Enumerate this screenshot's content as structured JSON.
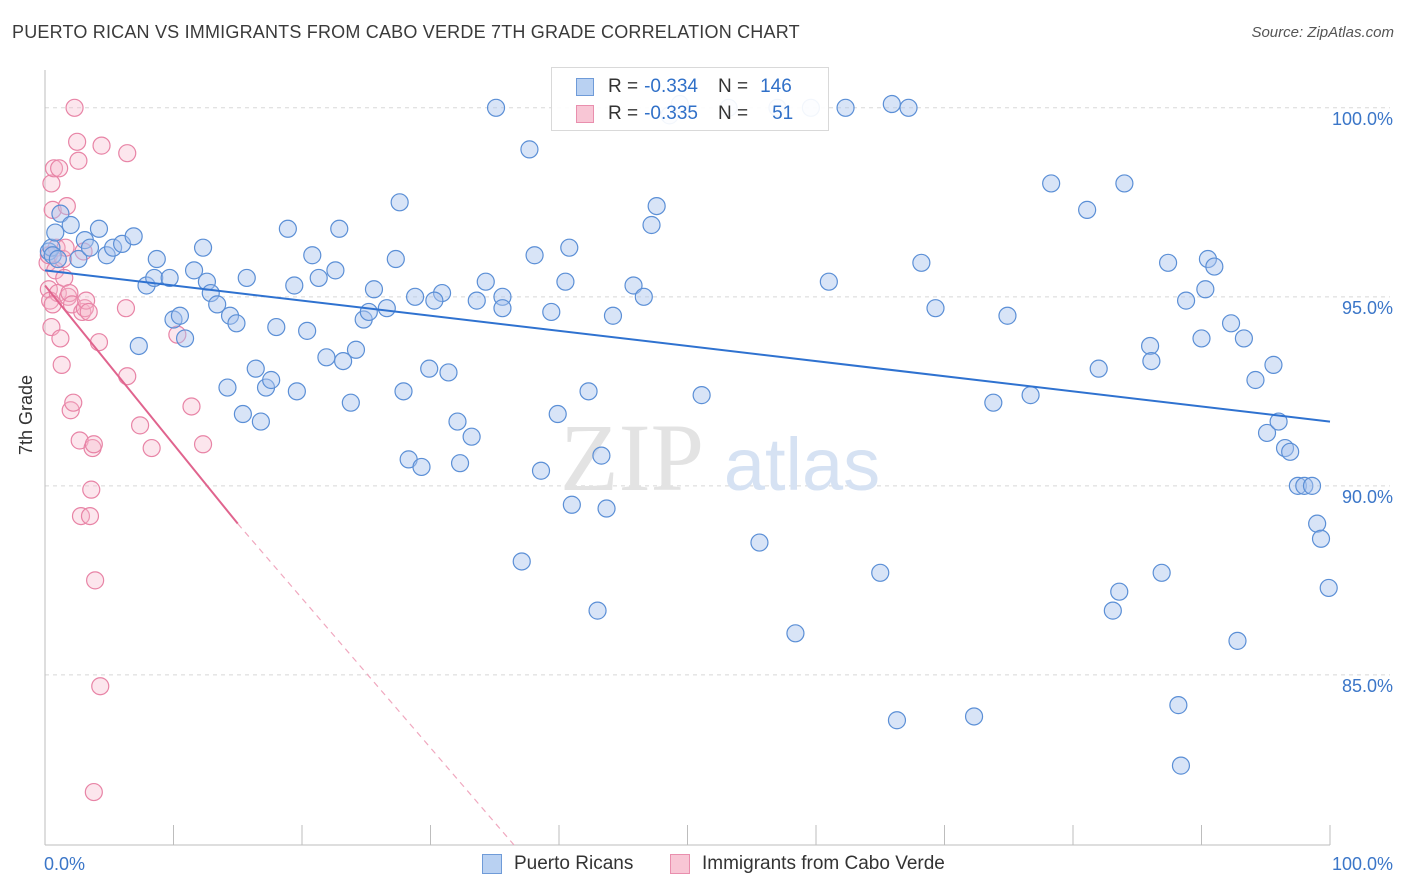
{
  "header": {
    "title": "PUERTO RICAN VS IMMIGRANTS FROM CABO VERDE 7TH GRADE CORRELATION CHART",
    "source": "Source: ZipAtlas.com"
  },
  "legend": {
    "row1": {
      "r_label": "R =",
      "r_value": "-0.334",
      "n_label": "N =",
      "n_value": "146"
    },
    "row2": {
      "r_label": "R =",
      "r_value": "-0.335",
      "n_label": "N =",
      "n_value": "51"
    }
  },
  "bottom_legend": {
    "series1": "Puerto Ricans",
    "series2": "Immigrants from Cabo Verde"
  },
  "colors": {
    "blue_fill": "#a9c4ee",
    "blue_stroke": "#5b8fd6",
    "blue_line": "#2f72d0",
    "pink_fill": "#f5b8cb",
    "pink_stroke": "#e884a6",
    "pink_line": "#e0648e",
    "tick_text": "#3b76c8",
    "grid": "#d8d8d8",
    "watermark": "#e3e3e3"
  },
  "chart_data": {
    "type": "scatter",
    "title": "PUERTO RICAN VS IMMIGRANTS FROM CABO VERDE 7TH GRADE CORRELATION CHART",
    "xlabel": "",
    "ylabel": "7th Grade",
    "xlim": [
      0,
      100
    ],
    "ylim": [
      80.5,
      101.0
    ],
    "x_tick_labels": [
      "0.0%",
      "100.0%"
    ],
    "y_ticks": [
      85,
      90,
      95,
      100
    ],
    "y_tick_labels": [
      "85.0%",
      "90.0%",
      "95.0%",
      "100.0%"
    ],
    "grid": true,
    "watermark": {
      "zip": "ZIP",
      "atlas": "atlas"
    },
    "series": [
      {
        "name": "Puerto Ricans",
        "color": "#a9c4ee",
        "trendline": {
          "x": [
            0,
            100
          ],
          "y": [
            95.7,
            91.7
          ]
        },
        "points": [
          [
            0.3,
            96.2
          ],
          [
            0.5,
            96.3
          ],
          [
            0.6,
            96.1
          ],
          [
            0.8,
            96.7
          ],
          [
            1.0,
            96.0
          ],
          [
            1.2,
            97.2
          ],
          [
            2.0,
            96.9
          ],
          [
            2.6,
            96.0
          ],
          [
            3.1,
            96.5
          ],
          [
            3.5,
            96.3
          ],
          [
            4.2,
            96.8
          ],
          [
            4.8,
            96.1
          ],
          [
            5.3,
            96.3
          ],
          [
            6.0,
            96.4
          ],
          [
            6.9,
            96.6
          ],
          [
            7.3,
            93.7
          ],
          [
            7.9,
            95.3
          ],
          [
            8.5,
            95.5
          ],
          [
            8.7,
            96.0
          ],
          [
            9.7,
            95.5
          ],
          [
            10.0,
            94.4
          ],
          [
            10.5,
            94.5
          ],
          [
            10.9,
            93.9
          ],
          [
            11.6,
            95.7
          ],
          [
            12.3,
            96.3
          ],
          [
            12.6,
            95.4
          ],
          [
            12.9,
            95.1
          ],
          [
            13.4,
            94.8
          ],
          [
            14.2,
            92.6
          ],
          [
            14.4,
            94.5
          ],
          [
            14.9,
            94.3
          ],
          [
            15.4,
            91.9
          ],
          [
            15.7,
            95.5
          ],
          [
            16.4,
            93.1
          ],
          [
            16.8,
            91.7
          ],
          [
            17.2,
            92.6
          ],
          [
            17.6,
            92.8
          ],
          [
            18.0,
            94.2
          ],
          [
            18.9,
            96.8
          ],
          [
            19.4,
            95.3
          ],
          [
            19.6,
            92.5
          ],
          [
            20.4,
            94.1
          ],
          [
            20.8,
            96.1
          ],
          [
            21.3,
            95.5
          ],
          [
            21.9,
            93.4
          ],
          [
            22.6,
            95.7
          ],
          [
            22.9,
            96.8
          ],
          [
            23.2,
            93.3
          ],
          [
            23.8,
            92.2
          ],
          [
            24.2,
            93.6
          ],
          [
            24.8,
            94.4
          ],
          [
            25.2,
            94.6
          ],
          [
            25.6,
            95.2
          ],
          [
            26.6,
            94.7
          ],
          [
            27.3,
            96.0
          ],
          [
            27.6,
            97.5
          ],
          [
            27.9,
            92.5
          ],
          [
            28.3,
            90.7
          ],
          [
            28.8,
            95.0
          ],
          [
            29.3,
            90.5
          ],
          [
            29.9,
            93.1
          ],
          [
            30.9,
            95.1
          ],
          [
            30.3,
            94.9
          ],
          [
            31.4,
            93.0
          ],
          [
            32.1,
            91.7
          ],
          [
            32.3,
            90.6
          ],
          [
            33.2,
            91.3
          ],
          [
            33.6,
            94.9
          ],
          [
            34.3,
            95.4
          ],
          [
            35.1,
            100.0
          ],
          [
            35.6,
            95.0
          ],
          [
            35.6,
            94.7
          ],
          [
            37.1,
            88.0
          ],
          [
            37.7,
            98.9
          ],
          [
            38.1,
            96.1
          ],
          [
            38.6,
            90.4
          ],
          [
            39.4,
            94.6
          ],
          [
            39.9,
            91.9
          ],
          [
            40.5,
            95.4
          ],
          [
            40.8,
            96.3
          ],
          [
            41.0,
            89.5
          ],
          [
            42.3,
            92.5
          ],
          [
            43.0,
            86.7
          ],
          [
            43.3,
            90.8
          ],
          [
            43.7,
            89.4
          ],
          [
            44.2,
            94.5
          ],
          [
            45.8,
            95.3
          ],
          [
            46.6,
            95.0
          ],
          [
            47.2,
            96.9
          ],
          [
            47.6,
            97.4
          ],
          [
            48.6,
            99.8
          ],
          [
            49.4,
            100.1
          ],
          [
            51.1,
            92.4
          ],
          [
            53.2,
            100.0
          ],
          [
            55.6,
            88.5
          ],
          [
            57.0,
            100.0
          ],
          [
            58.4,
            86.1
          ],
          [
            59.6,
            100.0
          ],
          [
            61.0,
            95.4
          ],
          [
            62.3,
            100.0
          ],
          [
            65.0,
            87.7
          ],
          [
            65.9,
            100.1
          ],
          [
            66.3,
            83.8
          ],
          [
            67.2,
            100.0
          ],
          [
            68.2,
            95.9
          ],
          [
            69.3,
            94.7
          ],
          [
            72.3,
            83.9
          ],
          [
            73.8,
            92.2
          ],
          [
            74.9,
            94.5
          ],
          [
            76.7,
            92.4
          ],
          [
            78.3,
            98.0
          ],
          [
            81.1,
            97.3
          ],
          [
            82.0,
            93.1
          ],
          [
            83.1,
            86.7
          ],
          [
            83.6,
            87.2
          ],
          [
            84.0,
            98.0
          ],
          [
            86.0,
            93.7
          ],
          [
            86.1,
            93.3
          ],
          [
            86.9,
            87.7
          ],
          [
            87.4,
            95.9
          ],
          [
            88.2,
            84.2
          ],
          [
            88.4,
            82.6
          ],
          [
            88.8,
            94.9
          ],
          [
            90.0,
            93.9
          ],
          [
            90.3,
            95.2
          ],
          [
            90.5,
            96.0
          ],
          [
            91.0,
            95.8
          ],
          [
            92.3,
            94.3
          ],
          [
            92.8,
            85.9
          ],
          [
            93.3,
            93.9
          ],
          [
            94.2,
            92.8
          ],
          [
            95.1,
            91.4
          ],
          [
            95.6,
            93.2
          ],
          [
            96.0,
            91.7
          ],
          [
            96.5,
            91.0
          ],
          [
            96.9,
            90.9
          ],
          [
            97.5,
            90.0
          ],
          [
            98.0,
            90.0
          ],
          [
            98.6,
            90.0
          ],
          [
            99.0,
            89.0
          ],
          [
            99.3,
            88.6
          ],
          [
            99.9,
            87.3
          ]
        ]
      },
      {
        "name": "Immigrants from Cabo Verde",
        "color": "#f5b8cb",
        "trendline": {
          "x": [
            0,
            15
          ],
          "y": [
            95.3,
            89.0
          ],
          "dashed_to": {
            "x": 36.5,
            "y": 80.5
          }
        },
        "points": [
          [
            0.2,
            95.9
          ],
          [
            0.3,
            96.1
          ],
          [
            0.3,
            95.2
          ],
          [
            0.4,
            94.9
          ],
          [
            0.5,
            94.2
          ],
          [
            0.5,
            98.0
          ],
          [
            0.6,
            97.3
          ],
          [
            0.7,
            98.4
          ],
          [
            0.8,
            95.7
          ],
          [
            0.9,
            96.3
          ],
          [
            1.0,
            95.1
          ],
          [
            1.1,
            98.4
          ],
          [
            1.2,
            93.9
          ],
          [
            1.3,
            93.2
          ],
          [
            1.4,
            96.0
          ],
          [
            1.5,
            95.5
          ],
          [
            1.6,
            96.3
          ],
          [
            1.7,
            97.4
          ],
          [
            1.8,
            95.0
          ],
          [
            1.9,
            95.1
          ],
          [
            2.0,
            92.0
          ],
          [
            2.1,
            94.8
          ],
          [
            2.2,
            92.2
          ],
          [
            2.3,
            100.0
          ],
          [
            2.5,
            99.1
          ],
          [
            2.6,
            98.6
          ],
          [
            2.7,
            91.2
          ],
          [
            2.8,
            89.2
          ],
          [
            2.9,
            94.6
          ],
          [
            3.0,
            96.2
          ],
          [
            3.1,
            94.7
          ],
          [
            3.2,
            94.9
          ],
          [
            3.4,
            94.6
          ],
          [
            3.5,
            89.2
          ],
          [
            3.6,
            89.9
          ],
          [
            3.7,
            91.0
          ],
          [
            3.8,
            91.1
          ],
          [
            3.9,
            87.5
          ],
          [
            4.2,
            93.8
          ],
          [
            4.4,
            99.0
          ],
          [
            4.3,
            84.7
          ],
          [
            3.8,
            81.9
          ],
          [
            6.4,
            98.8
          ],
          [
            6.3,
            94.7
          ],
          [
            6.4,
            92.9
          ],
          [
            7.4,
            91.6
          ],
          [
            8.3,
            91.0
          ],
          [
            10.3,
            94.0
          ],
          [
            11.4,
            92.1
          ],
          [
            12.3,
            91.1
          ],
          [
            0.6,
            94.8
          ]
        ]
      }
    ]
  }
}
